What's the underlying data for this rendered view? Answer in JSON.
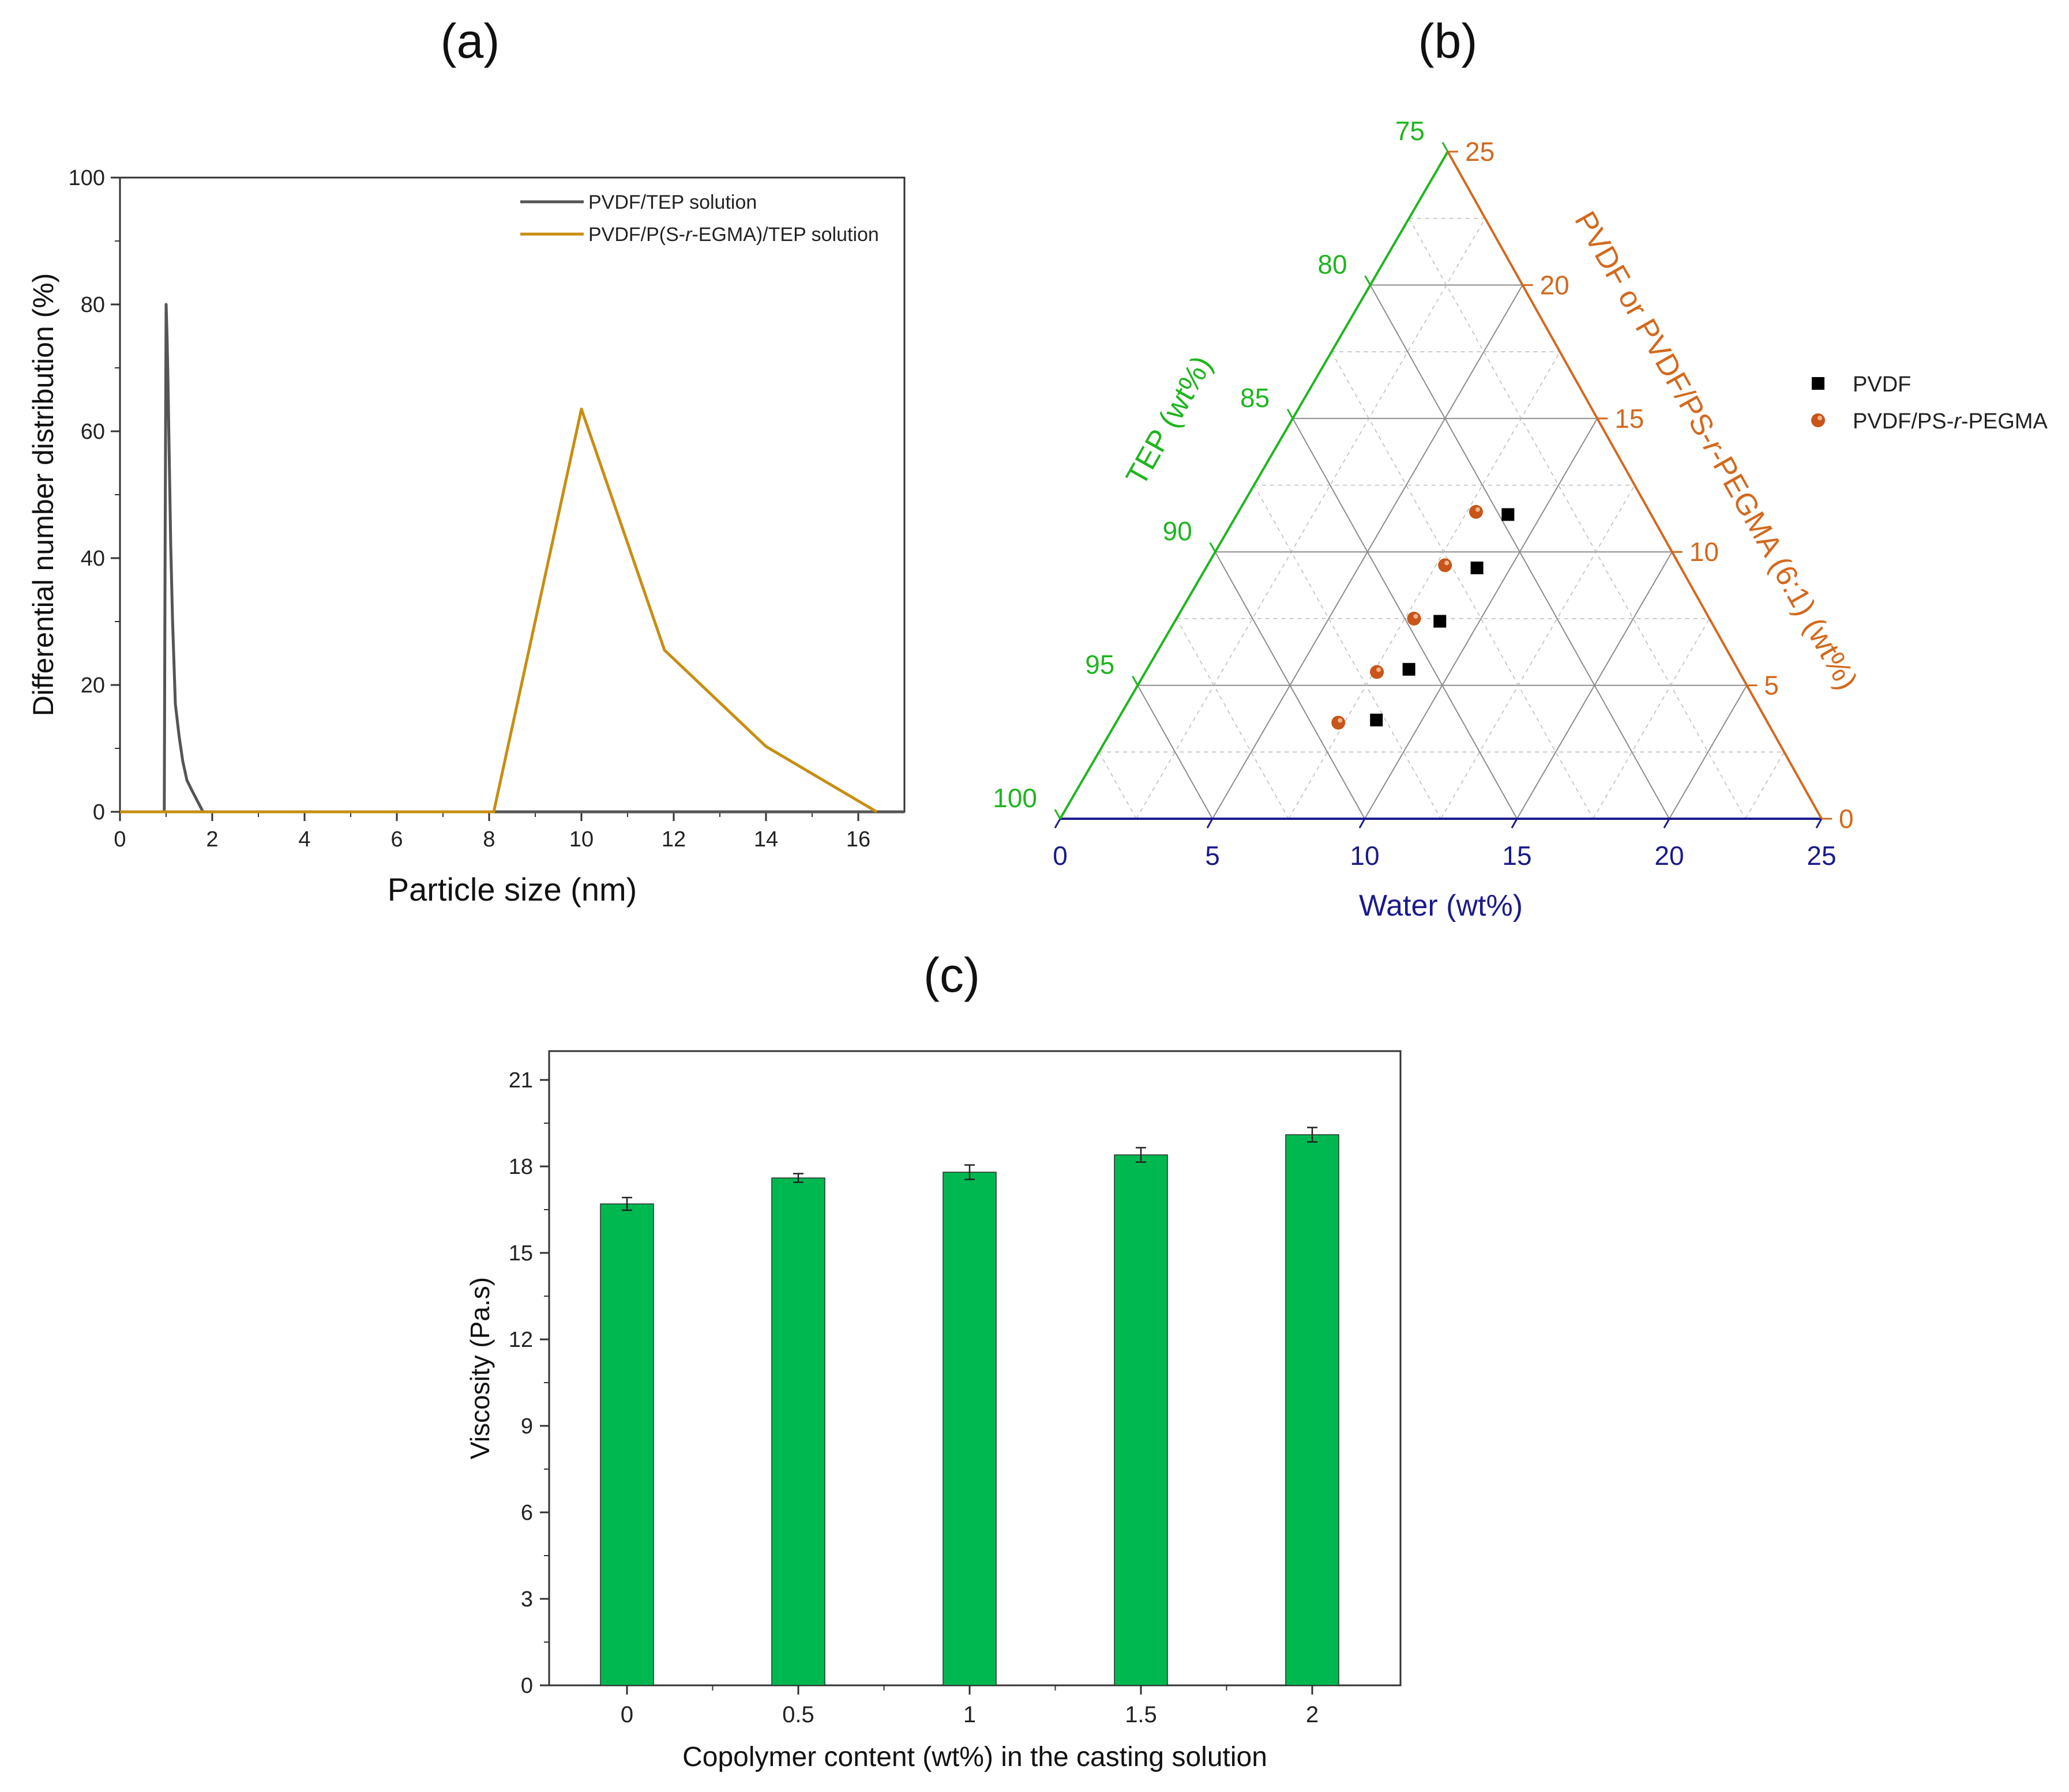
{
  "panels": {
    "a": "(a)",
    "b": "(b)",
    "c": "(c)"
  },
  "chart_data": [
    {
      "id": "a",
      "type": "line",
      "title": "",
      "xlabel": "Particle size (nm)",
      "ylabel": "Differential number distribution (%)",
      "xlim": [
        0,
        17
      ],
      "ylim": [
        0,
        100
      ],
      "xticks": [
        0,
        2,
        4,
        6,
        8,
        10,
        12,
        14,
        16
      ],
      "yticks": [
        0,
        20,
        40,
        60,
        80,
        100
      ],
      "legend_position": "top-right",
      "series": [
        {
          "name": "PVDF/TEP solution",
          "legend_parts": [
            "PVDF/TEP solution"
          ],
          "color": "#555555",
          "x": [
            0,
            0.96,
            0.97,
            0.98,
            1.0,
            1.02,
            1.04,
            1.07,
            1.1,
            1.14,
            1.2,
            1.28,
            1.36,
            1.45,
            1.55,
            1.8,
            17
          ],
          "y": [
            0,
            0,
            23,
            45,
            80,
            75,
            68,
            55,
            42,
            30,
            17,
            12,
            8,
            5,
            3.5,
            0,
            0
          ]
        },
        {
          "name": "PVDF/P(S-r-EGMA)/TEP solution",
          "legend_parts": [
            "PVDF/P(S-",
            "r",
            "-EGMA)/TEP solution"
          ],
          "color": "#C88E12",
          "x": [
            0,
            8.1,
            10,
            11.8,
            14,
            16.4
          ],
          "y": [
            0,
            0,
            63.5,
            25.5,
            10.3,
            0
          ]
        }
      ]
    },
    {
      "id": "b",
      "type": "scatter",
      "subtype": "ternary",
      "axes": {
        "water": {
          "label": "Water (wt%)",
          "color": "#1A1A8C",
          "ticks": [
            0,
            5,
            10,
            15,
            20,
            25
          ]
        },
        "tep": {
          "label": "TEP (wt%)",
          "color": "#1FB51F",
          "ticks": [
            100,
            95,
            90,
            85,
            80,
            75
          ]
        },
        "polymer": {
          "label": "PVDF or PVDF/PS-r-PEGMA (6:1) (wt%)",
          "label_parts": [
            "PVDF or PVDF/PS-",
            "r",
            "-PEGMA (6:1) (wt%)"
          ],
          "color": "#D2691E",
          "ticks": [
            0,
            5,
            10,
            15,
            20,
            25
          ]
        }
      },
      "legend_position": "right",
      "series": [
        {
          "name": "PVDF",
          "legend_parts": [
            "PVDF"
          ],
          "marker": "square",
          "color": "#000000",
          "points": [
            {
              "water": 8.5,
              "polymer": 3.7,
              "tep": 87.8
            },
            {
              "water": 8.6,
              "polymer": 5.6,
              "tep": 85.8
            },
            {
              "water": 8.7,
              "polymer": 7.4,
              "tep": 83.9
            },
            {
              "water": 8.9,
              "polymer": 9.4,
              "tep": 81.7
            },
            {
              "water": 8.9,
              "polymer": 11.4,
              "tep": 79.7
            }
          ]
        },
        {
          "name": "PVDF/PS-r-PEGMA",
          "legend_parts": [
            "PVDF/PS-",
            "r",
            "-PEGMA"
          ],
          "marker": "sphere",
          "color": "#C8551A",
          "points": [
            {
              "water": 7.3,
              "polymer": 3.6,
              "tep": 89.1
            },
            {
              "water": 7.6,
              "polymer": 5.5,
              "tep": 86.9
            },
            {
              "water": 7.8,
              "polymer": 7.5,
              "tep": 84.7
            },
            {
              "water": 7.8,
              "polymer": 9.5,
              "tep": 82.7
            },
            {
              "water": 7.8,
              "polymer": 11.5,
              "tep": 80.7
            }
          ]
        }
      ]
    },
    {
      "id": "c",
      "type": "bar",
      "title": "",
      "xlabel": "Copolymer content (wt%) in the casting solution",
      "ylabel": "Viscosity (Pa.s)",
      "ylim": [
        0,
        22
      ],
      "yticks": [
        0,
        3,
        6,
        9,
        12,
        15,
        18,
        21
      ],
      "categories": [
        "0",
        "0.5",
        "1",
        "1.5",
        "2"
      ],
      "values": [
        16.7,
        17.6,
        17.8,
        18.4,
        19.1
      ],
      "errors": [
        0.22,
        0.15,
        0.25,
        0.25,
        0.25
      ],
      "color": "#00B850"
    }
  ]
}
